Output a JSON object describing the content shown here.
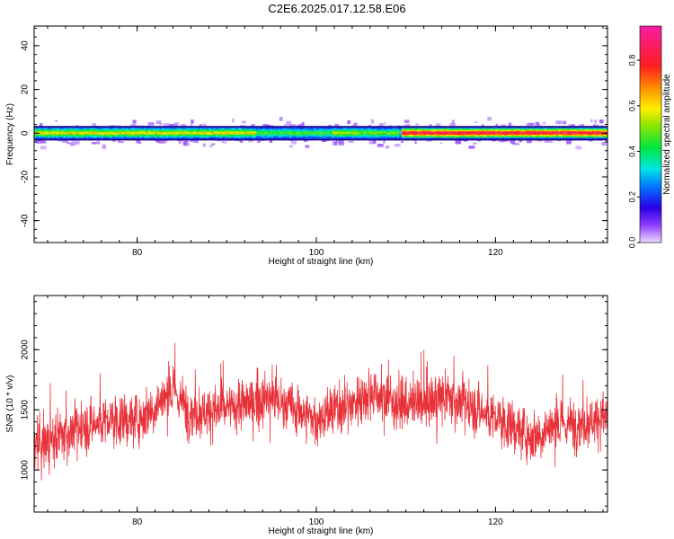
{
  "title": "C2E6.2025.017.12.58.E06",
  "chart_data": [
    {
      "type": "heatmap",
      "xlabel": "Height of straight line (km)",
      "ylabel": "Frequency (Hz)",
      "xlim": [
        68.5,
        132.5
      ],
      "ylim": [
        -50,
        49
      ],
      "xticks": [
        80,
        100,
        120
      ],
      "yticks": [
        40,
        20,
        0,
        -20,
        -40
      ],
      "band_center_hz": 0,
      "band_halfwidth_hz": 3,
      "segments": [
        {
          "x": [
            68.5,
            93
          ],
          "amplitude": 0.55
        },
        {
          "x": [
            93,
            101.5
          ],
          "amplitude": 0.4
        },
        {
          "x": [
            101.5,
            104.5
          ],
          "amplitude": 0.5
        },
        {
          "x": [
            104.5,
            109
          ],
          "amplitude": 0.45
        },
        {
          "x": [
            109.5,
            132.5
          ],
          "amplitude": 0.85
        }
      ],
      "colorbar": {
        "label": "Normalized spectral amplitude",
        "range": [
          0.0,
          0.95
        ],
        "ticks": [
          "0.0",
          "0.2",
          "0.4",
          "0.6",
          "0.8"
        ]
      }
    },
    {
      "type": "line",
      "xlabel": "Height of straight line (km)",
      "ylabel": "SNR (10 * v/v)",
      "xlim": [
        68.5,
        132.5
      ],
      "ylim": [
        650,
        2450
      ],
      "xticks": [
        80,
        100,
        120
      ],
      "yticks": [
        1000,
        1500,
        2000
      ],
      "color": "#e8323a",
      "trend": {
        "x": [
          68.5,
          72,
          76,
          80,
          84,
          86,
          90,
          95,
          100,
          104,
          106,
          110,
          115,
          120,
          124,
          126,
          130,
          132.5
        ],
        "mean": [
          1180,
          1300,
          1400,
          1420,
          1650,
          1480,
          1500,
          1600,
          1420,
          1550,
          1650,
          1530,
          1600,
          1430,
          1280,
          1350,
          1400,
          1450
        ]
      }
    }
  ]
}
